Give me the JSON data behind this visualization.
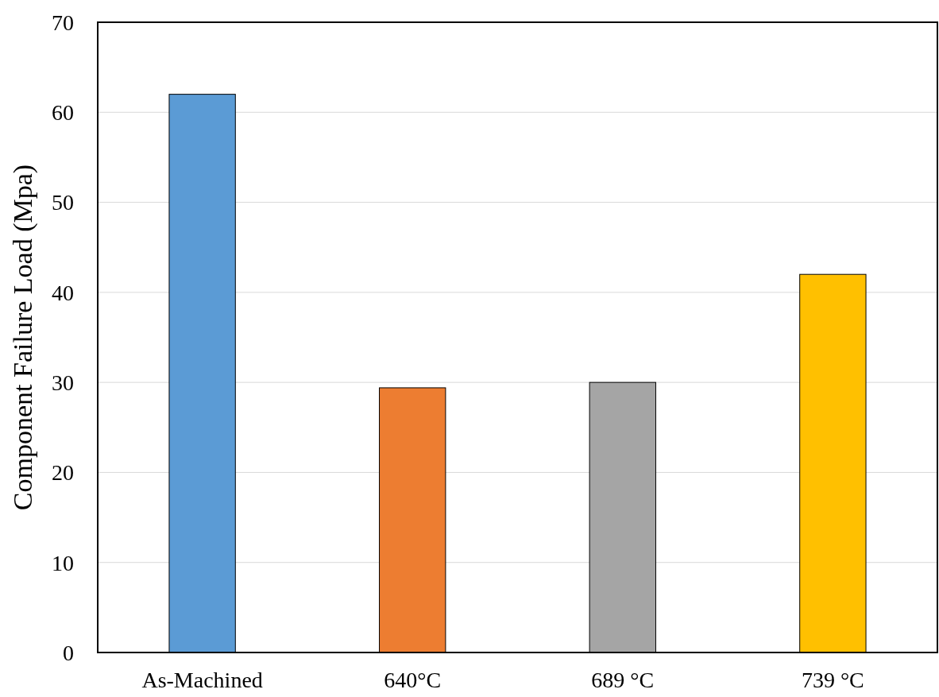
{
  "chart_data": {
    "type": "bar",
    "ylabel": "Component Failure Load (Mpa)",
    "categories": [
      "As-Machined",
      "640°C",
      "689 °C",
      "739 °C"
    ],
    "values": [
      62,
      29.4,
      30,
      42
    ],
    "colors": [
      "#5b9bd5",
      "#ed7d31",
      "#a5a5a5",
      "#ffc000"
    ],
    "ylim": [
      0,
      70
    ],
    "yticks": [
      0,
      10,
      20,
      30,
      40,
      50,
      60,
      70
    ],
    "grid": "y"
  }
}
